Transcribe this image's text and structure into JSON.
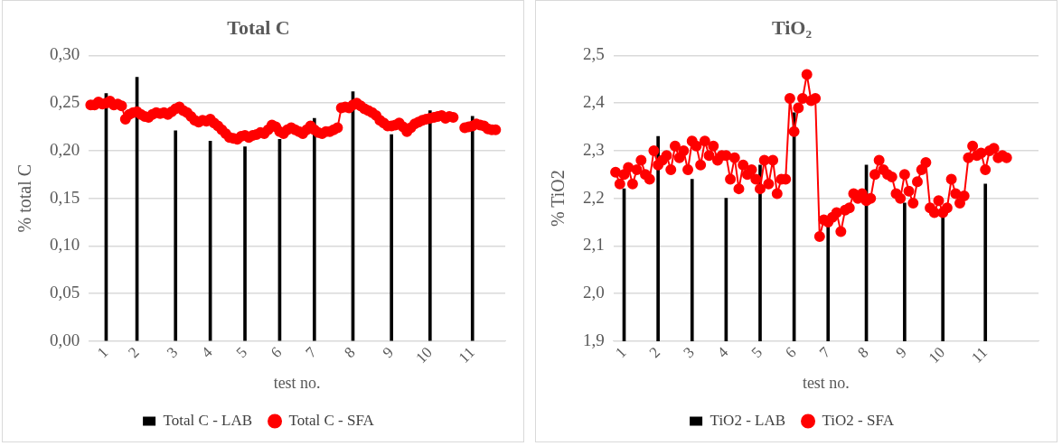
{
  "chart_data": [
    {
      "type": "bar",
      "title": "Total C",
      "xlabel": "test no.",
      "ylabel": "% total C",
      "categories": [
        null,
        null,
        null,
        null,
        "1",
        null,
        null,
        null,
        null,
        null,
        null,
        null,
        "2",
        null,
        null,
        null,
        null,
        null,
        null,
        null,
        null,
        null,
        "3",
        null,
        null,
        null,
        null,
        null,
        null,
        null,
        null,
        "4",
        null,
        null,
        null,
        null,
        null,
        null,
        null,
        null,
        "5",
        null,
        null,
        null,
        null,
        null,
        null,
        null,
        null,
        "6",
        null,
        null,
        null,
        null,
        null,
        null,
        null,
        null,
        "7",
        null,
        null,
        null,
        null,
        null,
        null,
        null,
        null,
        null,
        "8",
        null,
        null,
        null,
        null,
        null,
        null,
        null,
        null,
        null,
        "9",
        null,
        null,
        null,
        null,
        null,
        null,
        null,
        null,
        null,
        "10",
        null,
        null,
        null,
        null,
        null,
        null,
        null,
        null,
        null,
        null,
        "11",
        null,
        null,
        null,
        null,
        null,
        null,
        null,
        null
      ],
      "series": [
        {
          "name": "Total C - LAB",
          "color": "#000000",
          "values": [
            null,
            null,
            null,
            null,
            0.26,
            null,
            null,
            null,
            null,
            null,
            null,
            null,
            0.277,
            null,
            null,
            null,
            null,
            null,
            null,
            null,
            null,
            null,
            0.221,
            null,
            null,
            null,
            null,
            null,
            null,
            null,
            null,
            0.21,
            null,
            null,
            null,
            null,
            null,
            null,
            null,
            null,
            0.204,
            null,
            null,
            null,
            null,
            null,
            null,
            null,
            null,
            0.212,
            null,
            null,
            null,
            null,
            null,
            null,
            null,
            null,
            0.234,
            null,
            null,
            null,
            null,
            null,
            null,
            null,
            null,
            null,
            0.262,
            null,
            null,
            null,
            null,
            null,
            null,
            null,
            null,
            null,
            0.217,
            null,
            null,
            null,
            null,
            null,
            null,
            null,
            null,
            null,
            0.242,
            null,
            null,
            null,
            null,
            null,
            null,
            null,
            null,
            null,
            null,
            0.236,
            null,
            null,
            null,
            null,
            null,
            null,
            null,
            null
          ]
        },
        {
          "name": "Total C - SFA",
          "type": "line",
          "color": "#ff0000",
          "values": [
            0.248,
            0.248,
            0.251,
            0.249,
            0.25,
            0.252,
            0.248,
            0.249,
            0.247,
            0.233,
            0.238,
            0.24,
            0.241,
            0.238,
            0.236,
            0.235,
            0.238,
            0.24,
            0.239,
            0.24,
            0.238,
            0.241,
            0.244,
            0.246,
            0.242,
            0.24,
            0.236,
            0.232,
            0.23,
            0.232,
            0.231,
            0.233,
            0.229,
            0.226,
            0.222,
            0.218,
            0.214,
            0.213,
            0.212,
            0.215,
            0.216,
            0.214,
            0.216,
            0.217,
            0.219,
            0.218,
            0.222,
            0.227,
            0.225,
            0.22,
            0.218,
            0.222,
            0.224,
            0.222,
            0.22,
            0.218,
            0.222,
            0.226,
            0.222,
            0.219,
            0.218,
            0.22,
            0.22,
            0.222,
            0.224,
            0.245,
            0.246,
            0.245,
            0.248,
            0.25,
            0.247,
            0.244,
            0.242,
            0.24,
            0.237,
            0.232,
            0.229,
            0.226,
            0.226,
            0.227,
            0.229,
            0.225,
            0.22,
            0.224,
            0.228,
            0.23,
            0.232,
            0.233,
            0.234,
            0.235,
            0.236,
            0.237,
            0.234,
            0.236,
            0.235,
            null,
            null,
            0.224,
            0.225,
            0.226,
            0.228,
            0.227,
            0.226,
            0.223,
            0.222,
            0.222,
            null,
            null
          ]
        }
      ],
      "ylim": [
        0,
        0.3
      ],
      "yticks": [
        {
          "value": 0,
          "label": "0,00"
        },
        {
          "value": 0.05,
          "label": "0,05"
        },
        {
          "value": 0.1,
          "label": "0,10"
        },
        {
          "value": 0.15,
          "label": "0,15"
        },
        {
          "value": 0.2,
          "label": "0,20"
        },
        {
          "value": 0.25,
          "label": "0,25"
        },
        {
          "value": 0.3,
          "label": "0,30"
        }
      ],
      "grid": "y",
      "legend": "bottom",
      "marker": "circle"
    },
    {
      "type": "bar",
      "title": "TiO₂",
      "xlabel": "test no.",
      "ylabel": "% TiO2",
      "categories": [
        null,
        null,
        "1",
        null,
        null,
        null,
        null,
        null,
        null,
        null,
        "2",
        null,
        null,
        null,
        null,
        null,
        null,
        null,
        "3",
        null,
        null,
        null,
        null,
        null,
        null,
        null,
        "4",
        null,
        null,
        null,
        null,
        null,
        null,
        null,
        "5",
        null,
        null,
        null,
        null,
        null,
        null,
        null,
        "6",
        null,
        null,
        null,
        null,
        null,
        null,
        null,
        "7",
        null,
        null,
        null,
        null,
        null,
        null,
        null,
        null,
        "8",
        null,
        null,
        null,
        null,
        null,
        null,
        null,
        null,
        "9",
        null,
        null,
        null,
        null,
        null,
        null,
        null,
        null,
        "10",
        null,
        null,
        null,
        null,
        null,
        null,
        null,
        null,
        null,
        "11",
        null,
        null,
        null,
        null,
        null,
        null,
        null,
        null,
        null,
        null,
        null,
        null
      ],
      "series": [
        {
          "name": "TiO2 - LAB",
          "color": "#000000",
          "values": [
            null,
            null,
            2.22,
            null,
            null,
            null,
            null,
            null,
            null,
            null,
            2.33,
            null,
            null,
            null,
            null,
            null,
            null,
            null,
            2.24,
            null,
            null,
            null,
            null,
            null,
            null,
            null,
            2.2,
            null,
            null,
            null,
            null,
            null,
            null,
            null,
            2.27,
            null,
            null,
            null,
            null,
            null,
            null,
            null,
            2.38,
            null,
            null,
            null,
            null,
            null,
            null,
            null,
            2.14,
            null,
            null,
            null,
            null,
            null,
            null,
            null,
            null,
            2.27,
            null,
            null,
            null,
            null,
            null,
            null,
            null,
            null,
            2.19,
            null,
            null,
            null,
            null,
            null,
            null,
            null,
            null,
            2.16,
            null,
            null,
            null,
            null,
            null,
            null,
            null,
            null,
            null,
            2.23,
            null,
            null,
            null,
            null,
            null,
            null,
            null,
            null,
            null,
            null,
            null,
            null
          ]
        },
        {
          "name": "TiO2 - SFA",
          "type": "line",
          "color": "#ff0000",
          "values": [
            2.255,
            2.23,
            2.25,
            2.265,
            2.23,
            2.26,
            2.28,
            2.25,
            2.24,
            2.3,
            2.27,
            2.28,
            2.29,
            2.26,
            2.31,
            2.285,
            2.3,
            2.26,
            2.32,
            2.31,
            2.27,
            2.32,
            2.29,
            2.31,
            2.28,
            2.29,
            2.29,
            2.24,
            2.285,
            2.22,
            2.27,
            2.25,
            2.26,
            2.24,
            2.22,
            2.28,
            2.23,
            2.28,
            2.21,
            2.24,
            2.24,
            2.41,
            2.34,
            2.39,
            2.41,
            2.46,
            2.405,
            2.41,
            2.12,
            2.155,
            2.15,
            2.16,
            2.17,
            2.13,
            2.175,
            2.18,
            2.21,
            2.2,
            2.21,
            2.195,
            2.2,
            2.25,
            2.28,
            2.26,
            2.25,
            2.245,
            2.21,
            2.2,
            2.25,
            2.215,
            2.19,
            2.235,
            2.26,
            2.275,
            2.18,
            2.17,
            2.195,
            2.17,
            2.18,
            2.24,
            2.21,
            2.19,
            2.205,
            2.285,
            2.31,
            2.29,
            2.295,
            2.26,
            2.3,
            2.305,
            2.285,
            2.29,
            2.285,
            null,
            null,
            null,
            null,
            null,
            null,
            null
          ]
        }
      ],
      "ylim": [
        1.9,
        2.5
      ],
      "yticks": [
        {
          "value": 1.9,
          "label": "1,9"
        },
        {
          "value": 2,
          "label": "2,0"
        },
        {
          "value": 2.1,
          "label": "2,1"
        },
        {
          "value": 2.2,
          "label": "2,2"
        },
        {
          "value": 2.3,
          "label": "2,3"
        },
        {
          "value": 2.4,
          "label": "2,4"
        },
        {
          "value": 2.5,
          "label": "2,5"
        }
      ],
      "grid": "y",
      "legend": "bottom",
      "marker": "circle"
    }
  ]
}
